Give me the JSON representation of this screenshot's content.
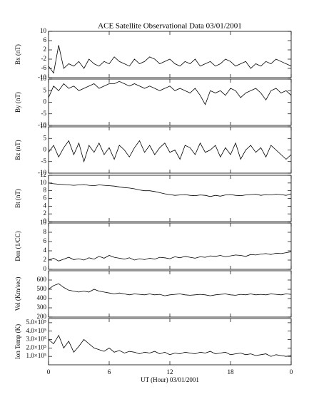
{
  "chart_data": [
    {
      "type": "line",
      "title": "ACE Satellite Observational Data   03/01/2001",
      "ylabel": "Bx (nT)",
      "color": "#000000",
      "x": [
        0,
        0.5,
        1,
        1.5,
        2,
        2.5,
        3,
        3.5,
        4,
        4.5,
        5,
        5.5,
        6,
        6.5,
        7,
        7.5,
        8,
        8.5,
        9,
        9.5,
        10,
        10.5,
        11,
        11.5,
        12,
        12.5,
        13,
        13.5,
        14,
        14.5,
        15,
        15.5,
        16,
        16.5,
        17,
        17.5,
        18,
        18.5,
        19,
        19.5,
        20,
        20.5,
        21,
        21.5,
        22,
        22.5,
        23,
        23.5,
        24
      ],
      "values": [
        -5,
        -8,
        4,
        -6,
        -4,
        -5,
        -3,
        -6,
        -2,
        -4,
        -5,
        -3,
        -4,
        -1,
        -3,
        -4,
        -5,
        -2,
        -4,
        -3,
        -1,
        -2,
        -4,
        -3,
        -2,
        -4,
        -5,
        -3,
        -4,
        -2,
        -5,
        -4,
        -3,
        -5,
        -4,
        -2,
        -3,
        -5,
        -4,
        -3,
        -6,
        -4,
        -5,
        -3,
        -4,
        -2,
        -3,
        -4,
        -5
      ],
      "xlim": [
        0,
        24
      ],
      "ylim": [
        -10,
        10
      ],
      "yticks": [
        -10,
        -6,
        -2,
        2,
        6,
        10
      ]
    },
    {
      "type": "line",
      "ylabel": "By (nT)",
      "color": "#000000",
      "x": [
        0,
        0.5,
        1,
        1.5,
        2,
        2.5,
        3,
        3.5,
        4,
        4.5,
        5,
        5.5,
        6,
        6.5,
        7,
        7.5,
        8,
        8.5,
        9,
        9.5,
        10,
        10.5,
        11,
        11.5,
        12,
        12.5,
        13,
        13.5,
        14,
        14.5,
        15,
        15.5,
        16,
        16.5,
        17,
        17.5,
        18,
        18.5,
        19,
        19.5,
        20,
        20.5,
        21,
        21.5,
        22,
        22.5,
        23,
        23.5,
        24
      ],
      "values": [
        2,
        7,
        5,
        8,
        6,
        7,
        5,
        6,
        7,
        8,
        6,
        7,
        8,
        8,
        9,
        8,
        7,
        8,
        7,
        6,
        7,
        6,
        5,
        6,
        7,
        5,
        6,
        5,
        4,
        6,
        3,
        -1,
        5,
        4,
        5,
        3,
        6,
        5,
        2,
        4,
        5,
        6,
        4,
        1,
        5,
        6,
        4,
        5,
        3
      ],
      "xlim": [
        0,
        24
      ],
      "ylim": [
        -10,
        10
      ],
      "yticks": [
        -10,
        -5,
        0,
        5,
        10
      ]
    },
    {
      "type": "line",
      "ylabel": "Bz (nT)",
      "color": "#000000",
      "x": [
        0,
        0.5,
        1,
        1.5,
        2,
        2.5,
        3,
        3.5,
        4,
        4.5,
        5,
        5.5,
        6,
        6.5,
        7,
        7.5,
        8,
        8.5,
        9,
        9.5,
        10,
        10.5,
        11,
        11.5,
        12,
        12.5,
        13,
        13.5,
        14,
        14.5,
        15,
        15.5,
        16,
        16.5,
        17,
        17.5,
        18,
        18.5,
        19,
        19.5,
        20,
        20.5,
        21,
        21.5,
        22,
        22.5,
        23,
        23.5,
        24
      ],
      "values": [
        -1,
        2,
        -3,
        1,
        4,
        -2,
        3,
        -5,
        2,
        -1,
        3,
        -2,
        1,
        -4,
        2,
        0,
        -3,
        1,
        4,
        -1,
        2,
        -2,
        1,
        3,
        -1,
        0,
        -4,
        2,
        1,
        -2,
        3,
        -1,
        0,
        2,
        -3,
        1,
        -2,
        3,
        -4,
        0,
        2,
        -1,
        1,
        -3,
        2,
        0,
        -2,
        -4,
        -2
      ],
      "xlim": [
        0,
        24
      ],
      "ylim": [
        -10,
        10
      ],
      "yticks": [
        -10,
        -5,
        0,
        5,
        10
      ]
    },
    {
      "type": "line",
      "ylabel": "Bt (nT)",
      "color": "#000000",
      "x": [
        0,
        0.5,
        1,
        1.5,
        2,
        2.5,
        3,
        3.5,
        4,
        4.5,
        5,
        5.5,
        6,
        6.5,
        7,
        7.5,
        8,
        8.5,
        9,
        9.5,
        10,
        10.5,
        11,
        11.5,
        12,
        12.5,
        13,
        13.5,
        14,
        14.5,
        15,
        15.5,
        16,
        16.5,
        17,
        17.5,
        18,
        18.5,
        19,
        19.5,
        20,
        20.5,
        21,
        21.5,
        22,
        22.5,
        23,
        23.5,
        24
      ],
      "values": [
        10,
        9.8,
        9.7,
        9.6,
        9.5,
        9.4,
        9.5,
        9.6,
        9.4,
        9.3,
        9.5,
        9.4,
        9.3,
        9.2,
        9.0,
        8.8,
        8.7,
        8.5,
        8.2,
        8.0,
        8.0,
        7.8,
        7.5,
        7.2,
        7.0,
        6.8,
        6.9,
        7.0,
        6.8,
        6.7,
        6.9,
        6.8,
        6.5,
        6.8,
        6.6,
        6.9,
        7.0,
        6.8,
        6.7,
        6.9,
        7.0,
        7.1,
        6.8,
        7.0,
        6.9,
        7.1,
        7.0,
        6.8,
        7.2
      ],
      "xlim": [
        0,
        24
      ],
      "ylim": [
        0,
        12
      ],
      "yticks": [
        0,
        2,
        4,
        6,
        8,
        10,
        12
      ]
    },
    {
      "type": "line",
      "ylabel": "Den (1/CC)",
      "color": "#000000",
      "x": [
        0,
        0.5,
        1,
        1.5,
        2,
        2.5,
        3,
        3.5,
        4,
        4.5,
        5,
        5.5,
        6,
        6.5,
        7,
        7.5,
        8,
        8.5,
        9,
        9.5,
        10,
        10.5,
        11,
        11.5,
        12,
        12.5,
        13,
        13.5,
        14,
        14.5,
        15,
        15.5,
        16,
        16.5,
        17,
        17.5,
        18,
        18.5,
        19,
        19.5,
        20,
        20.5,
        21,
        21.5,
        22,
        22.5,
        23,
        23.5,
        24
      ],
      "values": [
        2.0,
        2.4,
        1.8,
        2.2,
        2.6,
        2.1,
        2.3,
        2.0,
        2.5,
        2.2,
        2.8,
        2.4,
        3.0,
        2.6,
        2.4,
        2.2,
        2.5,
        2.0,
        2.3,
        2.1,
        2.4,
        2.2,
        2.6,
        2.5,
        2.3,
        2.7,
        2.5,
        2.8,
        2.6,
        2.4,
        2.7,
        2.6,
        2.9,
        2.8,
        3.0,
        2.7,
        2.9,
        3.1,
        3.0,
        2.8,
        3.2,
        3.1,
        3.3,
        3.4,
        3.2,
        3.5,
        3.4,
        3.6,
        3.8
      ],
      "xlim": [
        0,
        24
      ],
      "ylim": [
        0,
        10
      ],
      "yticks": [
        0,
        2,
        4,
        6,
        8,
        10
      ]
    },
    {
      "type": "line",
      "ylabel": "Vel (Km/sec)",
      "color": "#000000",
      "x": [
        0,
        0.5,
        1,
        1.5,
        2,
        2.5,
        3,
        3.5,
        4,
        4.5,
        5,
        5.5,
        6,
        6.5,
        7,
        7.5,
        8,
        8.5,
        9,
        9.5,
        10,
        10.5,
        11,
        11.5,
        12,
        12.5,
        13,
        13.5,
        14,
        14.5,
        15,
        15.5,
        16,
        16.5,
        17,
        17.5,
        18,
        18.5,
        19,
        19.5,
        20,
        20.5,
        21,
        21.5,
        22,
        22.5,
        23,
        23.5,
        24
      ],
      "values": [
        500,
        540,
        560,
        520,
        490,
        480,
        470,
        480,
        470,
        500,
        480,
        470,
        460,
        450,
        460,
        450,
        440,
        450,
        445,
        440,
        450,
        440,
        445,
        430,
        440,
        445,
        450,
        440,
        435,
        440,
        445,
        440,
        430,
        440,
        445,
        450,
        440,
        435,
        445,
        440,
        450,
        440,
        445,
        440,
        450,
        445,
        440,
        450,
        445
      ],
      "xlim": [
        0,
        24
      ],
      "ylim": [
        200,
        700
      ],
      "yticks": [
        200,
        300,
        400,
        500,
        600
      ]
    },
    {
      "type": "line",
      "ylabel": "Ion Temp (K)",
      "xlabel": "UT (Hour)  03/01/2001",
      "color": "#000000",
      "x": [
        0,
        0.5,
        1,
        1.5,
        2,
        2.5,
        3,
        3.5,
        4,
        4.5,
        5,
        5.5,
        6,
        6.5,
        7,
        7.5,
        8,
        8.5,
        9,
        9.5,
        10,
        10.5,
        11,
        11.5,
        12,
        12.5,
        13,
        13.5,
        14,
        14.5,
        15,
        15.5,
        16,
        16.5,
        17,
        17.5,
        18,
        18.5,
        19,
        19.5,
        20,
        20.5,
        21,
        21.5,
        22,
        22.5,
        23,
        23.5,
        24
      ],
      "values": [
        300000,
        250000,
        350000,
        200000,
        280000,
        150000,
        220000,
        300000,
        250000,
        200000,
        180000,
        160000,
        200000,
        150000,
        170000,
        140000,
        160000,
        150000,
        130000,
        150000,
        140000,
        160000,
        130000,
        150000,
        120000,
        140000,
        130000,
        150000,
        140000,
        130000,
        150000,
        140000,
        160000,
        130000,
        140000,
        150000,
        120000,
        130000,
        140000,
        120000,
        130000,
        110000,
        120000,
        130000,
        100000,
        120000,
        110000,
        100000,
        110000
      ],
      "xlim": [
        0,
        24
      ],
      "ylim": [
        0,
        550000
      ],
      "yticks": [
        {
          "value": 100000,
          "label": "1.0×10⁵"
        },
        {
          "value": 200000,
          "label": "2.0×10⁵"
        },
        {
          "value": 300000,
          "label": "3.0×10⁵"
        },
        {
          "value": 400000,
          "label": "4.0×10⁵"
        },
        {
          "value": 500000,
          "label": "5.0×10⁵"
        }
      ],
      "xticks": [
        0,
        6,
        12,
        18,
        {
          "value": 24,
          "label": "0"
        }
      ]
    }
  ]
}
